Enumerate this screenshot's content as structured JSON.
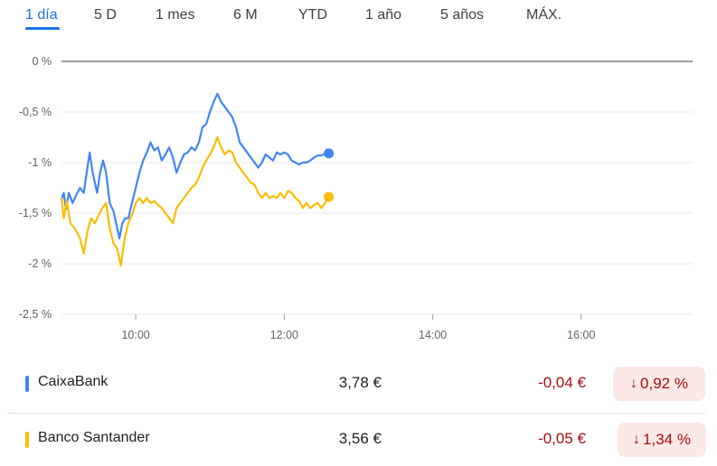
{
  "tabs": [
    {
      "label": "1 día",
      "active": true
    },
    {
      "label": "5 D"
    },
    {
      "label": "1 mes"
    },
    {
      "label": "6 M"
    },
    {
      "label": "YTD"
    },
    {
      "label": "1 año"
    },
    {
      "label": "5 años"
    },
    {
      "label": "MÁX."
    }
  ],
  "chart_data": {
    "type": "line",
    "y_tick_labels": [
      "0 %",
      "-0,5 %",
      "-1 %",
      "-1,5 %",
      "-2 %",
      "-2,5 %"
    ],
    "y_ticks": [
      0,
      -0.5,
      -1,
      -1.5,
      -2,
      -2.5
    ],
    "ylim": [
      -2.5,
      0
    ],
    "x_tick_labels": [
      "10:00",
      "12:00",
      "14:00",
      "16:00"
    ],
    "x_ticks": [
      10,
      12,
      14,
      16
    ],
    "xlim": [
      9,
      17.5
    ],
    "grid": true,
    "series": [
      {
        "name": "CaixaBank",
        "color": "#4285f4",
        "points": [
          [
            9.0,
            -1.36
          ],
          [
            9.03,
            -1.3
          ],
          [
            9.06,
            -1.46
          ],
          [
            9.1,
            -1.3
          ],
          [
            9.15,
            -1.4
          ],
          [
            9.2,
            -1.32
          ],
          [
            9.25,
            -1.25
          ],
          [
            9.3,
            -1.3
          ],
          [
            9.35,
            -1.05
          ],
          [
            9.38,
            -0.9
          ],
          [
            9.42,
            -1.1
          ],
          [
            9.48,
            -1.3
          ],
          [
            9.52,
            -1.1
          ],
          [
            9.56,
            -0.98
          ],
          [
            9.6,
            -1.1
          ],
          [
            9.65,
            -1.4
          ],
          [
            9.7,
            -1.48
          ],
          [
            9.75,
            -1.65
          ],
          [
            9.78,
            -1.75
          ],
          [
            9.82,
            -1.6
          ],
          [
            9.86,
            -1.55
          ],
          [
            9.9,
            -1.55
          ],
          [
            9.95,
            -1.4
          ],
          [
            10.0,
            -1.25
          ],
          [
            10.05,
            -1.1
          ],
          [
            10.1,
            -0.98
          ],
          [
            10.15,
            -0.9
          ],
          [
            10.2,
            -0.8
          ],
          [
            10.25,
            -0.88
          ],
          [
            10.3,
            -0.85
          ],
          [
            10.35,
            -0.98
          ],
          [
            10.4,
            -0.92
          ],
          [
            10.45,
            -0.85
          ],
          [
            10.5,
            -0.95
          ],
          [
            10.55,
            -1.1
          ],
          [
            10.6,
            -1.0
          ],
          [
            10.65,
            -0.92
          ],
          [
            10.7,
            -0.9
          ],
          [
            10.75,
            -0.85
          ],
          [
            10.8,
            -0.88
          ],
          [
            10.85,
            -0.8
          ],
          [
            10.9,
            -0.65
          ],
          [
            10.95,
            -0.62
          ],
          [
            11.0,
            -0.5
          ],
          [
            11.05,
            -0.4
          ],
          [
            11.1,
            -0.32
          ],
          [
            11.15,
            -0.4
          ],
          [
            11.2,
            -0.45
          ],
          [
            11.25,
            -0.5
          ],
          [
            11.3,
            -0.55
          ],
          [
            11.35,
            -0.65
          ],
          [
            11.4,
            -0.8
          ],
          [
            11.45,
            -0.85
          ],
          [
            11.5,
            -0.9
          ],
          [
            11.55,
            -0.95
          ],
          [
            11.6,
            -1.0
          ],
          [
            11.65,
            -1.05
          ],
          [
            11.7,
            -1.0
          ],
          [
            11.75,
            -0.92
          ],
          [
            11.8,
            -0.95
          ],
          [
            11.85,
            -0.98
          ],
          [
            11.9,
            -0.9
          ],
          [
            11.95,
            -0.92
          ],
          [
            12.0,
            -0.9
          ],
          [
            12.05,
            -0.92
          ],
          [
            12.1,
            -0.98
          ],
          [
            12.15,
            -1.0
          ],
          [
            12.2,
            -1.02
          ],
          [
            12.25,
            -1.0
          ],
          [
            12.3,
            -1.0
          ],
          [
            12.35,
            -0.98
          ],
          [
            12.4,
            -0.95
          ],
          [
            12.45,
            -0.93
          ],
          [
            12.5,
            -0.93
          ],
          [
            12.55,
            -0.91
          ],
          [
            12.6,
            -0.91
          ]
        ]
      },
      {
        "name": "Banco Santander",
        "color": "#fbbc04",
        "points": [
          [
            9.0,
            -1.35
          ],
          [
            9.03,
            -1.55
          ],
          [
            9.07,
            -1.38
          ],
          [
            9.12,
            -1.6
          ],
          [
            9.18,
            -1.65
          ],
          [
            9.25,
            -1.75
          ],
          [
            9.3,
            -1.9
          ],
          [
            9.35,
            -1.68
          ],
          [
            9.4,
            -1.55
          ],
          [
            9.45,
            -1.6
          ],
          [
            9.5,
            -1.52
          ],
          [
            9.55,
            -1.45
          ],
          [
            9.6,
            -1.4
          ],
          [
            9.65,
            -1.65
          ],
          [
            9.7,
            -1.8
          ],
          [
            9.75,
            -1.85
          ],
          [
            9.8,
            -2.02
          ],
          [
            9.85,
            -1.75
          ],
          [
            9.9,
            -1.6
          ],
          [
            9.95,
            -1.52
          ],
          [
            10.0,
            -1.4
          ],
          [
            10.05,
            -1.35
          ],
          [
            10.1,
            -1.4
          ],
          [
            10.15,
            -1.35
          ],
          [
            10.2,
            -1.4
          ],
          [
            10.25,
            -1.38
          ],
          [
            10.3,
            -1.42
          ],
          [
            10.35,
            -1.45
          ],
          [
            10.4,
            -1.5
          ],
          [
            10.45,
            -1.55
          ],
          [
            10.5,
            -1.6
          ],
          [
            10.55,
            -1.45
          ],
          [
            10.6,
            -1.4
          ],
          [
            10.65,
            -1.35
          ],
          [
            10.7,
            -1.3
          ],
          [
            10.75,
            -1.25
          ],
          [
            10.8,
            -1.22
          ],
          [
            10.85,
            -1.15
          ],
          [
            10.9,
            -1.05
          ],
          [
            10.95,
            -0.98
          ],
          [
            11.0,
            -0.92
          ],
          [
            11.05,
            -0.85
          ],
          [
            11.1,
            -0.75
          ],
          [
            11.15,
            -0.85
          ],
          [
            11.2,
            -0.92
          ],
          [
            11.25,
            -0.88
          ],
          [
            11.3,
            -0.9
          ],
          [
            11.35,
            -1.0
          ],
          [
            11.4,
            -1.05
          ],
          [
            11.45,
            -1.1
          ],
          [
            11.5,
            -1.15
          ],
          [
            11.55,
            -1.2
          ],
          [
            11.6,
            -1.22
          ],
          [
            11.65,
            -1.3
          ],
          [
            11.7,
            -1.35
          ],
          [
            11.75,
            -1.3
          ],
          [
            11.8,
            -1.35
          ],
          [
            11.85,
            -1.33
          ],
          [
            11.9,
            -1.35
          ],
          [
            11.95,
            -1.3
          ],
          [
            12.0,
            -1.35
          ],
          [
            12.05,
            -1.28
          ],
          [
            12.1,
            -1.3
          ],
          [
            12.15,
            -1.35
          ],
          [
            12.2,
            -1.38
          ],
          [
            12.25,
            -1.45
          ],
          [
            12.3,
            -1.4
          ],
          [
            12.35,
            -1.45
          ],
          [
            12.4,
            -1.42
          ],
          [
            12.45,
            -1.4
          ],
          [
            12.5,
            -1.45
          ],
          [
            12.55,
            -1.4
          ],
          [
            12.6,
            -1.34
          ]
        ]
      }
    ]
  },
  "stocks": [
    {
      "name": "CaixaBank",
      "color": "#4285f4",
      "price": "3,78 €",
      "change": "-0,04 €",
      "arrow": "↓",
      "percent": "0,92 %"
    },
    {
      "name": "Banco Santander",
      "color": "#fbbc04",
      "price": "3,56 €",
      "change": "-0,05 €",
      "arrow": "↓",
      "percent": "1,34 %"
    }
  ]
}
